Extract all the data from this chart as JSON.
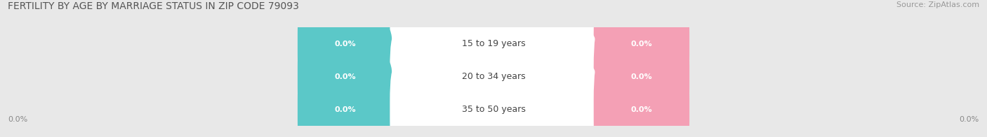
{
  "title": "FERTILITY BY AGE BY MARRIAGE STATUS IN ZIP CODE 79093",
  "source": "Source: ZipAtlas.com",
  "categories": [
    "15 to 19 years",
    "20 to 34 years",
    "35 to 50 years"
  ],
  "married_values": [
    0.0,
    0.0,
    0.0
  ],
  "unmarried_values": [
    0.0,
    0.0,
    0.0
  ],
  "married_color": "#5bc8c8",
  "unmarried_color": "#f4a0b5",
  "bar_bg_color_light": "#ececec",
  "bar_bg_color_dark": "#d8d8d8",
  "title_fontsize": 10,
  "source_fontsize": 8,
  "value_fontsize": 8,
  "category_fontsize": 9,
  "legend_fontsize": 9,
  "background_color": "#ffffff",
  "axis_label_left": "0.0%",
  "axis_label_right": "0.0%",
  "xlim_left": "0.0%",
  "xlim_right": "0.0%"
}
